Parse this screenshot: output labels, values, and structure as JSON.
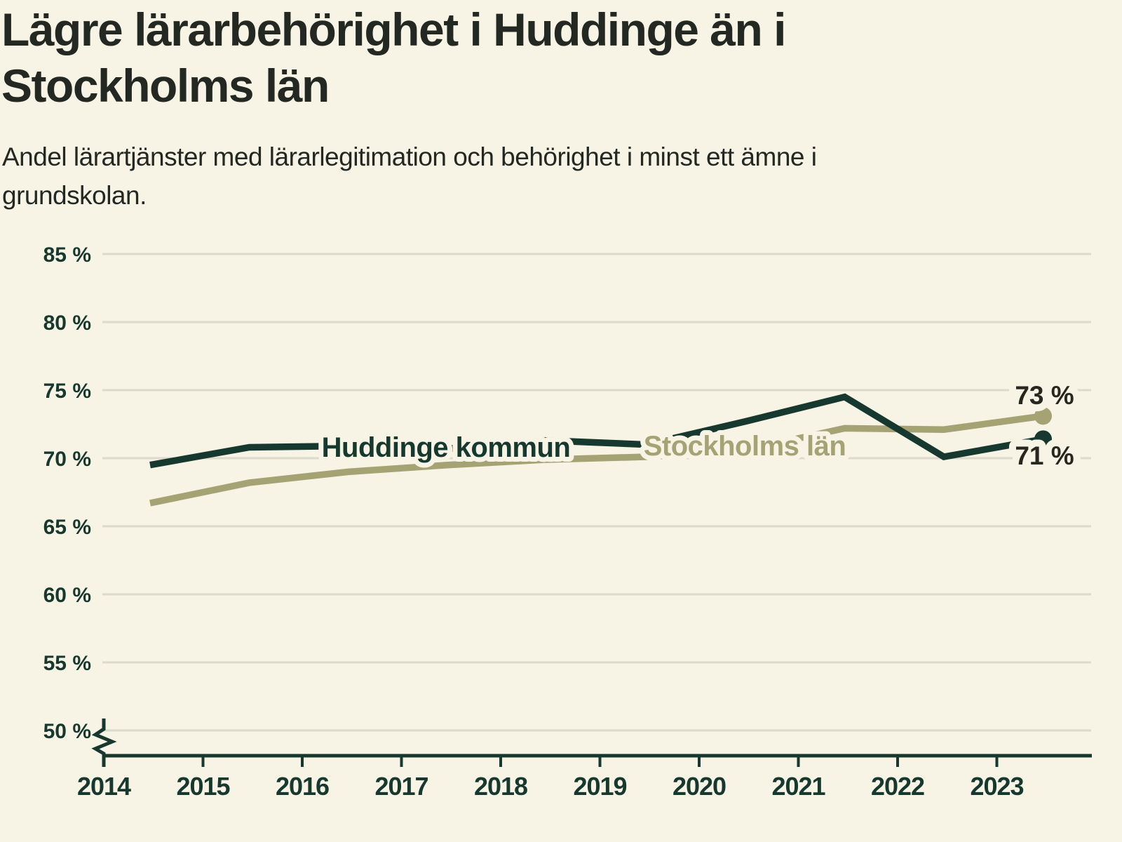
{
  "header": {
    "title_lines": [
      "Lägre lärarbehörighet i Huddinge än i",
      "Stockholms län"
    ],
    "subtitle_lines": [
      "Andel lärartjänster med lärarlegitimation och behörighet i minst ett ämne i",
      "grundskolan."
    ]
  },
  "colors": {
    "background": "#f7f4e6",
    "axis": "#17382e",
    "gridline": "#dcdacc",
    "value_label": "#27271f"
  },
  "chart_data": {
    "type": "line",
    "title": "Lägre lärarbehörighet i Huddinge än i Stockholms län",
    "subtitle": "Andel lärartjänster med lärarlegitimation och behörighet i minst ett ämne i grundskolan.",
    "x": [
      2014,
      2015,
      2016,
      2017,
      2018,
      2019,
      2020,
      2021,
      2022,
      2023
    ],
    "x_labels": [
      "2014",
      "2015",
      "2016",
      "2017",
      "2018",
      "2019",
      "2020",
      "2021",
      "2022",
      "2023"
    ],
    "y_ticks": [
      85,
      80,
      75,
      70,
      65,
      60,
      55,
      50
    ],
    "y_tick_labels": [
      "85 %",
      "80 %",
      "75 %",
      "70 %",
      "65 %",
      "60 %",
      "55 %",
      "50 %"
    ],
    "ylim": [
      50,
      85
    ],
    "y_unit": "%",
    "y_axis_break": true,
    "grid": "horizontal",
    "series": [
      {
        "name": "Stockholms län",
        "color": "#a5a274",
        "values": [
          66.7,
          68.2,
          69.0,
          69.5,
          69.9,
          70.1,
          70.6,
          72.2,
          72.1,
          73.1
        ],
        "end_label": "73 %",
        "end_label_side": "above",
        "label_pos": {
          "x": 1062,
          "y": 649
        }
      },
      {
        "name": "Huddinge kommun",
        "color": "#17382e",
        "values": [
          69.5,
          70.8,
          70.9,
          70.7,
          71.3,
          71.0,
          72.7,
          74.5,
          70.1,
          71.4
        ],
        "end_label": "71 %",
        "end_label_side": "below",
        "label_pos": {
          "x": 636,
          "y": 651
        }
      }
    ]
  }
}
